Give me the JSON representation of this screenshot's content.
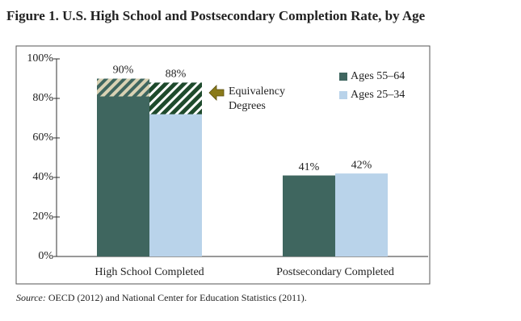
{
  "chart_data": {
    "type": "bar",
    "title": "Figure 1. U.S. High School and Postsecondary Completion Rate, by Age",
    "categories": [
      "High School Completed",
      "Postsecondary Completed"
    ],
    "series": [
      {
        "name": "Ages 55–64",
        "color": "#3f665f",
        "values": [
          90,
          41
        ],
        "value_labels": [
          "90%",
          "41%"
        ],
        "equivalency": [
          9,
          null
        ]
      },
      {
        "name": "Ages 25–34",
        "color": "#b9d3ea",
        "values": [
          88,
          42
        ],
        "value_labels": [
          "88%",
          "42%"
        ],
        "equivalency": [
          16,
          null
        ]
      }
    ],
    "ylim": [
      0,
      100
    ],
    "yticks": [
      {
        "value": 0,
        "label": "0%"
      },
      {
        "value": 20,
        "label": "20%"
      },
      {
        "value": 40,
        "label": "40%"
      },
      {
        "value": 60,
        "label": "60%"
      },
      {
        "value": 80,
        "label": "80%"
      },
      {
        "value": 100,
        "label": "100%"
      }
    ],
    "annotation": [
      "Equivalency",
      "Degrees"
    ],
    "legend": "top-right",
    "source_label": "Source:",
    "source": "OECD (2012) and National Center for Education Statistics (2011)."
  }
}
